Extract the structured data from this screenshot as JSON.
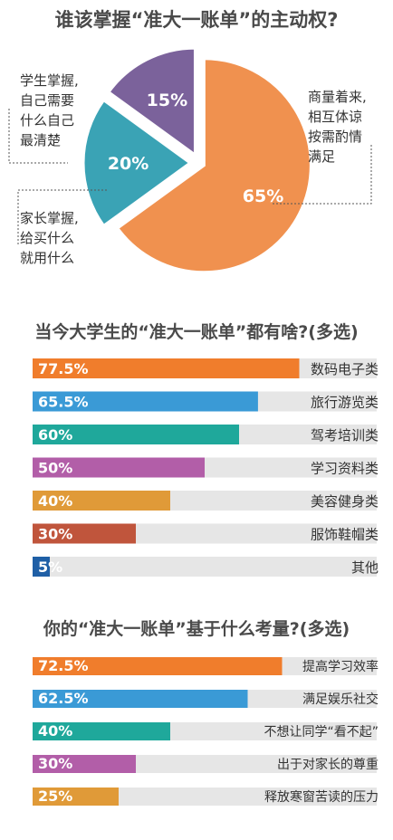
{
  "chart_data": [
    {
      "type": "pie",
      "title": "谁该掌握“准大一账单”的主动权?",
      "slices": [
        {
          "label_lines": [
            "商量着来,",
            "相互体谅",
            "按需酌情",
            "满足"
          ],
          "value": 65,
          "value_label": "65%",
          "color": "#f0914f"
        },
        {
          "label_lines": [
            "家长掌握,",
            "给买什么",
            "就用什么"
          ],
          "value": 20,
          "value_label": "20%",
          "color": "#3aa3b5"
        },
        {
          "label_lines": [
            "学生掌握,",
            "自己需要",
            "什么自己",
            "最清楚"
          ],
          "value": 15,
          "value_label": "15%",
          "color": "#7b629b"
        }
      ]
    },
    {
      "type": "bar",
      "title": "当今大学生的“准大一账单”都有啥?(多选)",
      "categories": [
        "数码电子类",
        "旅行游览类",
        "驾考培训类",
        "学习资料类",
        "美容健身类",
        "服饰鞋帽类",
        "其他"
      ],
      "values": [
        77.5,
        65.5,
        60,
        50,
        40,
        30,
        5
      ],
      "value_labels": [
        "77.5%",
        "65.5%",
        "60%",
        "50%",
        "40%",
        "30%",
        "5%"
      ],
      "colors": [
        "#f07d2c",
        "#3a9ad6",
        "#1fa89b",
        "#b25ea8",
        "#e09a38",
        "#c0553c",
        "#1f5fa6"
      ],
      "xlim": [
        0,
        100
      ]
    },
    {
      "type": "bar",
      "title": "你的“准大一账单”基于什么考量?(多选)",
      "categories": [
        "提高学习效率",
        "满足娱乐社交",
        "不想让同学“看不起”",
        "出于对家长的尊重",
        "释放寒窗苦读的压力"
      ],
      "values": [
        72.5,
        62.5,
        40,
        30,
        25
      ],
      "value_labels": [
        "72.5%",
        "62.5%",
        "40%",
        "30%",
        "25%"
      ],
      "colors": [
        "#f07d2c",
        "#3a9ad6",
        "#1fa89b",
        "#b25ea8",
        "#e09a38"
      ],
      "xlim": [
        0,
        100
      ]
    }
  ],
  "colors": {
    "track": "#e6e6e6",
    "text": "#3a3a3a"
  }
}
